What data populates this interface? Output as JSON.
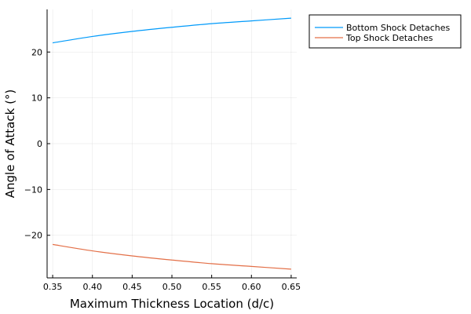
{
  "chart_data": {
    "type": "line",
    "xlabel": "Maximum Thickness Location (d/c)",
    "ylabel": "Angle of Attack (°)",
    "xlim": [
      0.343,
      0.657
    ],
    "ylim": [
      -29.3,
      29.3
    ],
    "grid": true,
    "legend_position": "outside-top-right",
    "x_ticks": [
      0.35,
      0.4,
      0.45,
      0.5,
      0.55,
      0.6,
      0.65
    ],
    "x_tick_labels": [
      "0.35",
      "0.40",
      "0.45",
      "0.50",
      "0.55",
      "0.60",
      "0.65"
    ],
    "y_ticks": [
      -20,
      -10,
      0,
      10,
      20
    ],
    "y_tick_labels": [
      "−20",
      "−10",
      "0",
      "10",
      "20"
    ],
    "x": [
      0.35,
      0.4,
      0.45,
      0.5,
      0.55,
      0.6,
      0.65
    ],
    "series": [
      {
        "name": "Bottom Shock Detaches",
        "color": "#009AFA",
        "values": [
          22.0,
          23.4,
          24.5,
          25.4,
          26.2,
          26.8,
          27.4
        ]
      },
      {
        "name": "Top Shock Detaches",
        "color": "#E36F47",
        "values": [
          -22.0,
          -23.4,
          -24.5,
          -25.4,
          -26.2,
          -26.8,
          -27.4
        ]
      }
    ]
  }
}
